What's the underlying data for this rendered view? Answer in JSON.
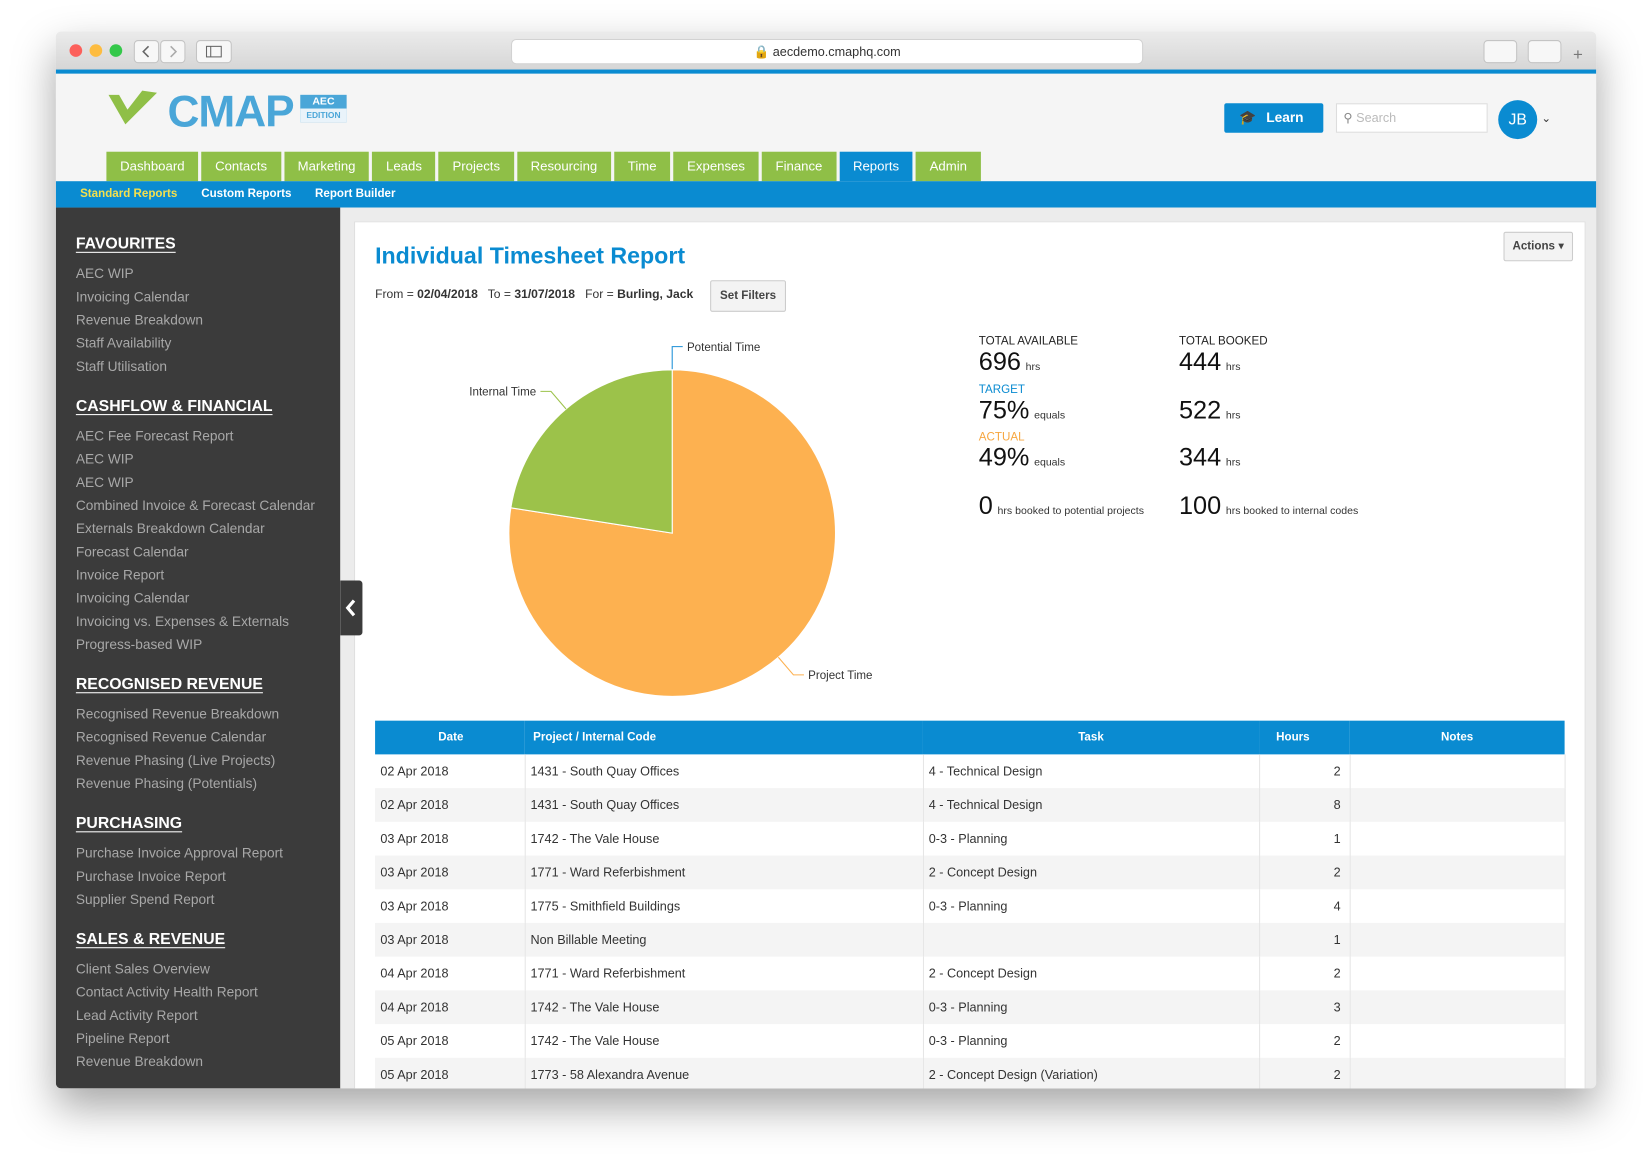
{
  "browser": {
    "url": "aecdemo.cmaphq.com"
  },
  "header": {
    "logo": "CMAP",
    "edition_top": "AEC",
    "edition_bottom": "EDITION",
    "learn": "Learn",
    "search_placeholder": "Search",
    "avatar": "JB"
  },
  "nav": {
    "tabs": [
      "Dashboard",
      "Contacts",
      "Marketing",
      "Leads",
      "Projects",
      "Resourcing",
      "Time",
      "Expenses",
      "Finance",
      "Reports",
      "Admin"
    ],
    "active": "Reports"
  },
  "subnav": {
    "items": [
      "Standard Reports",
      "Custom Reports",
      "Report Builder"
    ],
    "active": "Standard Reports"
  },
  "sidebar": {
    "sections": [
      {
        "title": "FAVOURITES",
        "items": [
          "AEC WIP",
          "Invoicing Calendar",
          "Revenue Breakdown",
          "Staff Availability",
          "Staff Utilisation"
        ]
      },
      {
        "title": "CASHFLOW & FINANCIAL",
        "items": [
          "AEC Fee Forecast Report",
          "AEC WIP",
          "AEC WIP",
          "Combined Invoice & Forecast Calendar",
          "Externals Breakdown Calendar",
          "Forecast Calendar",
          "Invoice Report",
          "Invoicing Calendar",
          "Invoicing vs. Expenses & Externals",
          "Progress-based WIP"
        ]
      },
      {
        "title": "RECOGNISED REVENUE",
        "items": [
          "Recognised Revenue Breakdown",
          "Recognised Revenue Calendar",
          "Revenue Phasing (Live Projects)",
          "Revenue Phasing (Potentials)"
        ]
      },
      {
        "title": "PURCHASING",
        "items": [
          "Purchase Invoice Approval Report",
          "Purchase Invoice Report",
          "Supplier Spend Report"
        ]
      },
      {
        "title": "SALES & REVENUE",
        "items": [
          "Client Sales Overview",
          "Contact Activity Health Report",
          "Lead Activity Report",
          "Pipeline Report",
          "Revenue Breakdown"
        ]
      }
    ]
  },
  "report": {
    "title": "Individual Timesheet Report",
    "actions": "Actions",
    "filters": {
      "from_label": "From =",
      "from": "02/04/2018",
      "to_label": "To =",
      "to": "31/07/2018",
      "for_label": "For =",
      "for": "Burling, Jack",
      "button": "Set Filters"
    },
    "stats": {
      "total_available_label": "TOTAL AVAILABLE",
      "total_available": 696,
      "total_booked_label": "TOTAL BOOKED",
      "total_booked": 444,
      "target_label": "TARGET",
      "target": "75%",
      "target_hrs": 522,
      "actual_label": "ACTUAL",
      "actual": "49%",
      "actual_hrs": 344,
      "potential_hrs": 0,
      "potential_text": "hrs booked to potential projects",
      "internal_hrs": 100,
      "internal_text": "hrs booked to internal codes",
      "hrs": "hrs",
      "equals": "equals"
    },
    "table": {
      "columns": [
        "Date",
        "Project / Internal Code",
        "Task",
        "Hours",
        "Notes"
      ],
      "rows": [
        [
          "02 Apr 2018",
          "1431 - South Quay Offices",
          "4 - Technical Design",
          2,
          ""
        ],
        [
          "02 Apr 2018",
          "1431 - South Quay Offices",
          "4 - Technical Design",
          8,
          ""
        ],
        [
          "03 Apr 2018",
          "1742 - The Vale House",
          "0-3 - Planning",
          1,
          ""
        ],
        [
          "03 Apr 2018",
          "1771 - Ward Referbishment",
          "2 - Concept Design",
          2,
          ""
        ],
        [
          "03 Apr 2018",
          "1775 - Smithfield Buildings",
          "0-3 - Planning",
          4,
          ""
        ],
        [
          "03 Apr 2018",
          "Non Billable Meeting",
          "",
          1,
          ""
        ],
        [
          "04 Apr 2018",
          "1771 - Ward Referbishment",
          "2 - Concept Design",
          2,
          ""
        ],
        [
          "04 Apr 2018",
          "1742 - The Vale House",
          "0-3 - Planning",
          3,
          ""
        ],
        [
          "05 Apr 2018",
          "1742 - The Vale House",
          "0-3 - Planning",
          2,
          ""
        ],
        [
          "05 Apr 2018",
          "1773 - 58 Alexandra Avenue",
          "2 - Concept Design (Variation)",
          2,
          ""
        ]
      ]
    }
  },
  "chart_data": {
    "type": "pie",
    "categories": [
      "Potential Time",
      "Project Time",
      "Internal Time"
    ],
    "values": [
      0,
      344,
      100
    ],
    "colors": [
      "#1a8fd6",
      "#fdb150",
      "#9cc24a"
    ]
  }
}
